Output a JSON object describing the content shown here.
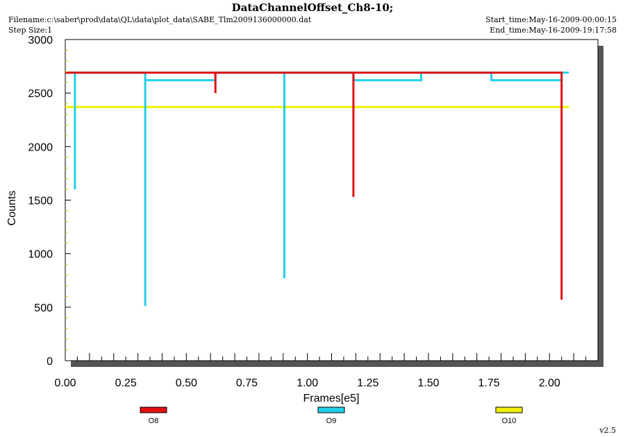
{
  "header": {
    "title": "DataChannelOffset_Ch8-10;",
    "filename": "Filename:c:\\saber\\prod\\data\\QL\\data\\plot_data\\SABE_Tlm2009136000000.dat",
    "step_size": "Step Size:1",
    "start_time": "Start_time:May-16-2009-00:00:15",
    "end_time": "End_time:May-16-2009-19:17:58"
  },
  "footer": {
    "version": "v2.5"
  },
  "chart_data": {
    "type": "line",
    "xlabel": "Frames[e5]",
    "ylabel": "Counts",
    "xlim": [
      0,
      2.2
    ],
    "ylim": [
      0,
      3000
    ],
    "x_ticks": [
      0.0,
      0.25,
      0.5,
      0.75,
      1.0,
      1.25,
      1.5,
      1.75,
      2.0
    ],
    "x_tick_labels": [
      "0.00",
      "0.25",
      "0.50",
      "0.75",
      "1.00",
      "1.25",
      "1.50",
      "1.75",
      "2.00"
    ],
    "y_ticks": [
      0,
      500,
      1000,
      1500,
      2000,
      2500,
      3000
    ],
    "y_tick_labels": [
      "0",
      "500",
      "1000",
      "1500",
      "2000",
      "2500",
      "3000"
    ],
    "grid": false,
    "legend_position": "bottom",
    "series": [
      {
        "name": "O8",
        "color": "#e01010",
        "x": [
          0.0,
          0.04,
          0.33,
          0.62,
          0.62,
          0.62,
          0.62,
          1.19,
          1.19,
          1.19,
          1.19,
          1.47,
          1.76,
          2.05,
          2.05,
          2.05
        ],
        "y": [
          2690,
          2690,
          2690,
          2690,
          2500,
          2500,
          2690,
          2690,
          1530,
          1530,
          2690,
          2690,
          2690,
          2690,
          570,
          570
        ]
      },
      {
        "name": "O9",
        "color": "#22d0e8",
        "x": [
          0.0,
          0.04,
          0.04,
          0.04,
          0.04,
          0.33,
          0.33,
          0.33,
          0.33,
          0.62,
          0.62,
          0.905,
          0.905,
          0.905,
          0.905,
          1.19,
          1.19,
          1.47,
          1.47,
          1.76,
          1.76,
          2.05,
          2.05,
          2.08
        ],
        "y": [
          2690,
          2690,
          1600,
          1600,
          2690,
          2690,
          510,
          510,
          2620,
          2620,
          2690,
          2690,
          770,
          770,
          2690,
          2690,
          2620,
          2620,
          2690,
          2690,
          2620,
          2620,
          2690,
          2690
        ]
      },
      {
        "name": "O10",
        "color": "#f0f000",
        "x": [
          0.0,
          2.08
        ],
        "y": [
          2370,
          2370
        ]
      }
    ]
  }
}
